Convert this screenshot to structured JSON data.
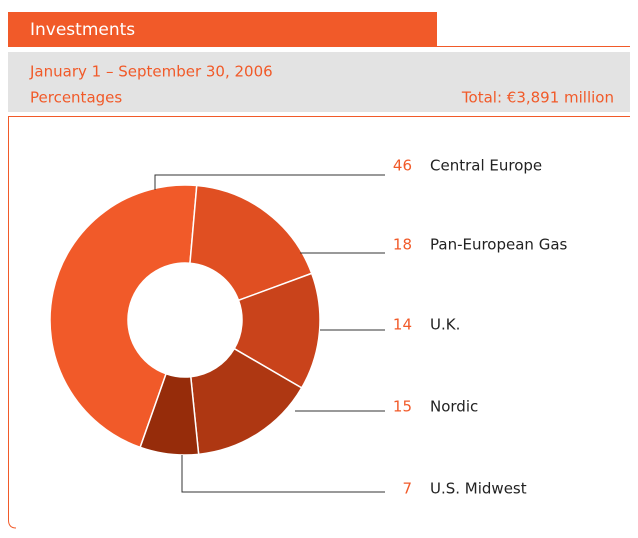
{
  "chart_data": {
    "type": "pie",
    "title": "Investments",
    "subtitle": "January 1 – September 30, 2006",
    "unit_label": "Percentages",
    "total_label": "Total: €3,891 million",
    "categories": [
      "Central Europe",
      "Pan-European Gas",
      "U.K.",
      "Nordic",
      "U.S. Midwest"
    ],
    "values": [
      46,
      18,
      14,
      15,
      7
    ],
    "colors": [
      "#f15a29",
      "#e04f22",
      "#c9431b",
      "#ae3712",
      "#962c0a"
    ]
  }
}
